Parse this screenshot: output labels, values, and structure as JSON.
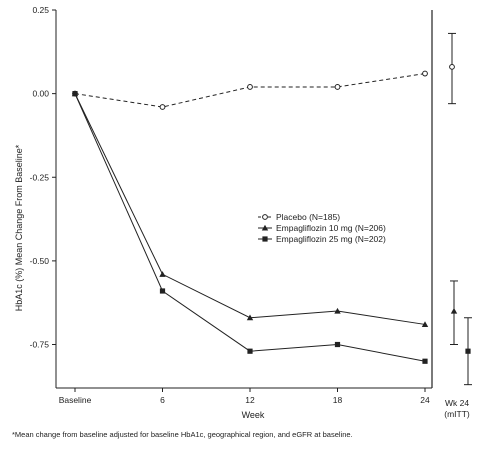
{
  "chart_data": {
    "type": "line",
    "ylabel": "HbA1c (%) Mean Change From Baseline*",
    "xlabel": "Week",
    "x": [
      "Baseline",
      "6",
      "12",
      "18",
      "24"
    ],
    "x_numeric": [
      0,
      6,
      12,
      18,
      24
    ],
    "ylim": [
      -0.88,
      0.25
    ],
    "yticks": [
      0.25,
      0.0,
      -0.25,
      -0.5,
      -0.75
    ],
    "ytick_labels": [
      "0.25",
      "0.00",
      "-0.25",
      "-0.50",
      "-0.75"
    ],
    "series": [
      {
        "name": "Placebo (N=185)",
        "marker": "open-circle",
        "line_style": "dashed",
        "values": [
          0.0,
          -0.04,
          0.02,
          0.02,
          0.06
        ],
        "wk24_mitt": {
          "mean": 0.08,
          "low": -0.03,
          "high": 0.18
        }
      },
      {
        "name": "Empagliflozin 10 mg (N=206)",
        "marker": "triangle",
        "line_style": "solid",
        "values": [
          0.0,
          -0.54,
          -0.67,
          -0.65,
          -0.69
        ],
        "wk24_mitt": {
          "mean": -0.65,
          "low": -0.75,
          "high": -0.56
        }
      },
      {
        "name": "Empagliflozin 25 mg (N=202)",
        "marker": "square",
        "line_style": "solid",
        "values": [
          0.0,
          -0.59,
          -0.77,
          -0.75,
          -0.8
        ],
        "wk24_mitt": {
          "mean": -0.77,
          "low": -0.87,
          "high": -0.67
        }
      }
    ],
    "side_panel_label_1": "Wk 24",
    "side_panel_label_2": "(mITT)",
    "legend_position": "center-right",
    "grid": false,
    "footnote": "*Mean change from baseline adjusted for baseline HbA1c, geographical region, and eGFR at baseline."
  }
}
